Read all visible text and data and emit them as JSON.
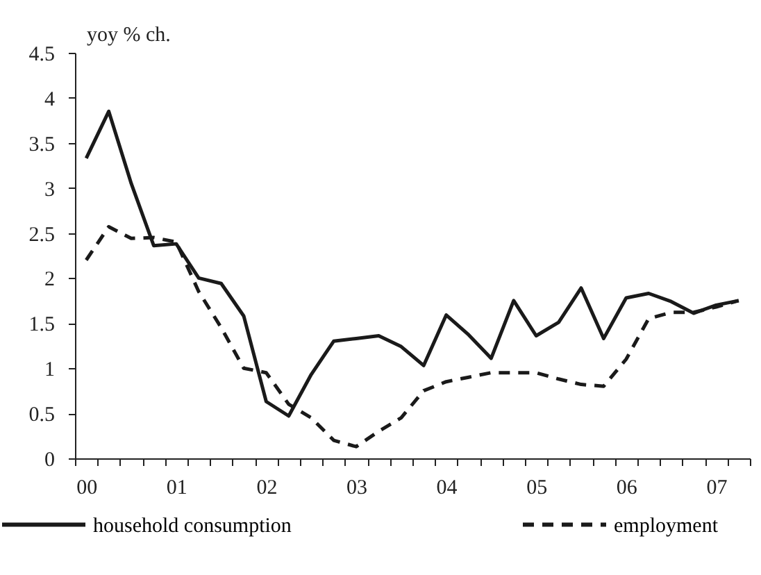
{
  "chart_data": {
    "type": "line",
    "ylabel": "yoy % ch.",
    "categories": [
      "00",
      null,
      null,
      null,
      "01",
      null,
      null,
      null,
      "02",
      null,
      null,
      null,
      "03",
      null,
      null,
      null,
      "04",
      null,
      null,
      null,
      "05",
      null,
      null,
      null,
      "06",
      null,
      null,
      null,
      "07",
      null
    ],
    "series": [
      {
        "name": "household consumption",
        "color": "#1a1a1a",
        "line_style": "solid",
        "values": [
          3.33,
          3.85,
          3.05,
          2.36,
          2.38,
          2.0,
          1.94,
          1.58,
          0.63,
          0.47,
          0.93,
          1.3,
          1.33,
          1.36,
          1.24,
          1.03,
          1.59,
          1.37,
          1.11,
          1.75,
          1.36,
          1.51,
          1.89,
          1.33,
          1.78,
          1.83,
          1.74,
          1.61,
          1.7,
          1.75
        ]
      },
      {
        "name": "employment",
        "color": "#1a1a1a",
        "line_style": "dashed",
        "values": [
          2.2,
          2.57,
          2.44,
          2.45,
          2.4,
          1.85,
          1.45,
          1.0,
          0.95,
          0.6,
          0.45,
          0.2,
          0.13,
          0.3,
          0.45,
          0.75,
          0.85,
          0.9,
          0.95,
          0.95,
          0.95,
          0.88,
          0.82,
          0.8,
          1.1,
          1.55,
          1.62,
          1.62,
          1.68,
          1.75
        ]
      }
    ],
    "ylim": [
      0,
      4.5
    ],
    "yticks": [
      0,
      0.5,
      1,
      1.5,
      2,
      2.5,
      3,
      3.5,
      4,
      4.5
    ],
    "grid": false,
    "legend": "bottom"
  }
}
